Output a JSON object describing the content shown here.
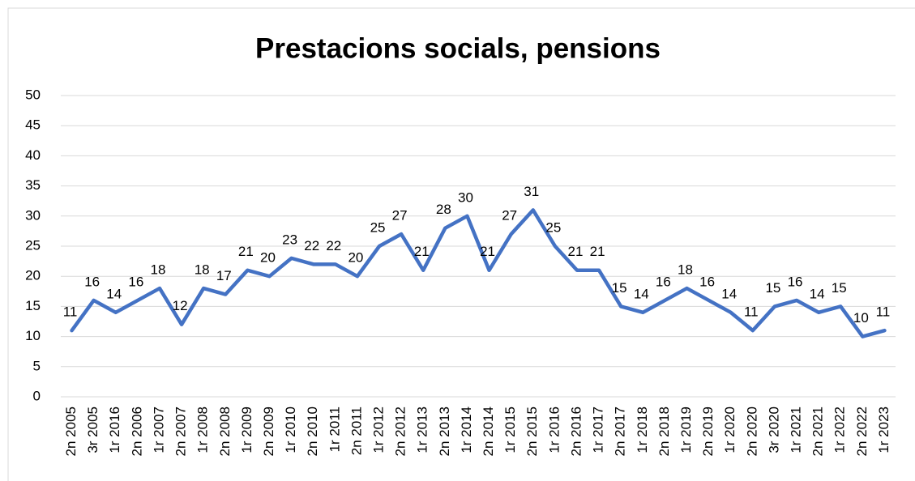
{
  "chart_data": {
    "type": "line",
    "title": "Prestacions socials, pensions",
    "categories": [
      "2n 2005",
      "3r 2005",
      "1r 2016",
      "2n 2006",
      "1r 2007",
      "2n 2007",
      "1r 2008",
      "2n 2008",
      "1r 2009",
      "2n 2009",
      "1r 2010",
      "2n 2010",
      "1r 2011",
      "2n 2011",
      "1r 2012",
      "2n 2012",
      "1r 2013",
      "2n 2013",
      "1r 2014",
      "2n 2014",
      "1r 2015",
      "2n 2015",
      "1r 2016",
      "2n 2016",
      "1r 2017",
      "2n 2017",
      "1r 2018",
      "2n 2018",
      "1r 2019",
      "2n 2019",
      "1r 2020",
      "2n 2020",
      "3r 2020",
      "1r 2021",
      "2n 2021",
      "1r 2022",
      "2n 2022",
      "1r 2023"
    ],
    "values": [
      11,
      16,
      14,
      16,
      18,
      12,
      18,
      17,
      21,
      20,
      23,
      22,
      22,
      20,
      25,
      27,
      21,
      28,
      30,
      21,
      27,
      31,
      25,
      21,
      21,
      15,
      14,
      16,
      18,
      16,
      14,
      11,
      15,
      16,
      14,
      15,
      10,
      11
    ],
    "color": "#4472c4",
    "ylim": [
      0,
      50
    ],
    "yticks": [
      0,
      5,
      10,
      15,
      20,
      25,
      30,
      35,
      40,
      45,
      50
    ],
    "grid": true
  }
}
